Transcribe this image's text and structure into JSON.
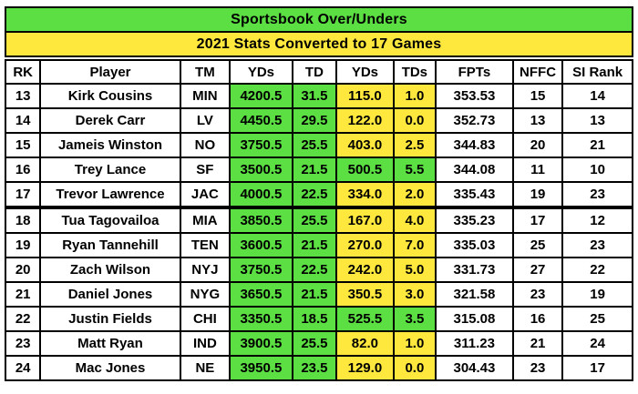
{
  "title": "Sportsbook Over/Unders",
  "subtitle": "2021 Stats Converted to 17 Games",
  "colors": {
    "banner_green": "#5bdf42",
    "banner_yellow": "#ffe83e",
    "cell_green": "#5bdf42",
    "cell_yellow": "#ffe83e",
    "border": "#000000",
    "background": "#ffffff",
    "text": "#000000"
  },
  "chart_data": {
    "type": "table",
    "title": "Sportsbook Over/Unders",
    "subtitle": "2021 Stats Converted to 17 Games",
    "columns": [
      "RK",
      "Player",
      "TM",
      "YDs",
      "TD",
      "YDs",
      "TDs",
      "FPTs",
      "NFFC",
      "SI Rank"
    ],
    "column_notes": "first YDs/TD pair = passing sportsbook over/unders (green cells); second YDs/TDs pair = rushing (yellow cells, green when elite rusher)",
    "rows": [
      {
        "rk": "13",
        "player": "Kirk Cousins",
        "tm": "MIN",
        "pass_yds": "4200.5",
        "pass_td": "31.5",
        "rush_yds": "115.0",
        "rush_tds": "1.0",
        "fpts": "353.53",
        "nffc": "15",
        "si_rank": "14",
        "rush_color": "yellow",
        "tier_break": false
      },
      {
        "rk": "14",
        "player": "Derek Carr",
        "tm": "LV",
        "pass_yds": "4450.5",
        "pass_td": "29.5",
        "rush_yds": "122.0",
        "rush_tds": "0.0",
        "fpts": "352.73",
        "nffc": "13",
        "si_rank": "13",
        "rush_color": "yellow",
        "tier_break": false
      },
      {
        "rk": "15",
        "player": "Jameis Winston",
        "tm": "NO",
        "pass_yds": "3750.5",
        "pass_td": "25.5",
        "rush_yds": "403.0",
        "rush_tds": "2.5",
        "fpts": "344.83",
        "nffc": "20",
        "si_rank": "21",
        "rush_color": "yellow",
        "tier_break": false
      },
      {
        "rk": "16",
        "player": "Trey Lance",
        "tm": "SF",
        "pass_yds": "3500.5",
        "pass_td": "21.5",
        "rush_yds": "500.5",
        "rush_tds": "5.5",
        "fpts": "344.08",
        "nffc": "11",
        "si_rank": "10",
        "rush_color": "green",
        "tier_break": false
      },
      {
        "rk": "17",
        "player": "Trevor Lawrence",
        "tm": "JAC",
        "pass_yds": "4000.5",
        "pass_td": "22.5",
        "rush_yds": "334.0",
        "rush_tds": "2.0",
        "fpts": "335.43",
        "nffc": "19",
        "si_rank": "23",
        "rush_color": "yellow",
        "tier_break": false
      },
      {
        "rk": "18",
        "player": "Tua Tagovailoa",
        "tm": "MIA",
        "pass_yds": "3850.5",
        "pass_td": "25.5",
        "rush_yds": "167.0",
        "rush_tds": "4.0",
        "fpts": "335.23",
        "nffc": "17",
        "si_rank": "12",
        "rush_color": "yellow",
        "tier_break": true
      },
      {
        "rk": "19",
        "player": "Ryan Tannehill",
        "tm": "TEN",
        "pass_yds": "3600.5",
        "pass_td": "21.5",
        "rush_yds": "270.0",
        "rush_tds": "7.0",
        "fpts": "335.03",
        "nffc": "25",
        "si_rank": "23",
        "rush_color": "yellow",
        "tier_break": false
      },
      {
        "rk": "20",
        "player": "Zach Wilson",
        "tm": "NYJ",
        "pass_yds": "3750.5",
        "pass_td": "22.5",
        "rush_yds": "242.0",
        "rush_tds": "5.0",
        "fpts": "331.73",
        "nffc": "27",
        "si_rank": "22",
        "rush_color": "yellow",
        "tier_break": false
      },
      {
        "rk": "21",
        "player": "Daniel Jones",
        "tm": "NYG",
        "pass_yds": "3650.5",
        "pass_td": "21.5",
        "rush_yds": "350.5",
        "rush_tds": "3.0",
        "fpts": "321.58",
        "nffc": "23",
        "si_rank": "19",
        "rush_color": "yellow",
        "tier_break": false
      },
      {
        "rk": "22",
        "player": "Justin Fields",
        "tm": "CHI",
        "pass_yds": "3350.5",
        "pass_td": "18.5",
        "rush_yds": "525.5",
        "rush_tds": "3.5",
        "fpts": "315.08",
        "nffc": "16",
        "si_rank": "25",
        "rush_color": "green",
        "tier_break": false
      },
      {
        "rk": "23",
        "player": "Matt Ryan",
        "tm": "IND",
        "pass_yds": "3900.5",
        "pass_td": "25.5",
        "rush_yds": "82.0",
        "rush_tds": "1.0",
        "fpts": "311.23",
        "nffc": "21",
        "si_rank": "24",
        "rush_color": "yellow",
        "tier_break": false
      },
      {
        "rk": "24",
        "player": "Mac Jones",
        "tm": "NE",
        "pass_yds": "3950.5",
        "pass_td": "23.5",
        "rush_yds": "129.0",
        "rush_tds": "0.0",
        "fpts": "304.43",
        "nffc": "23",
        "si_rank": "17",
        "rush_color": "yellow",
        "tier_break": false
      }
    ]
  }
}
